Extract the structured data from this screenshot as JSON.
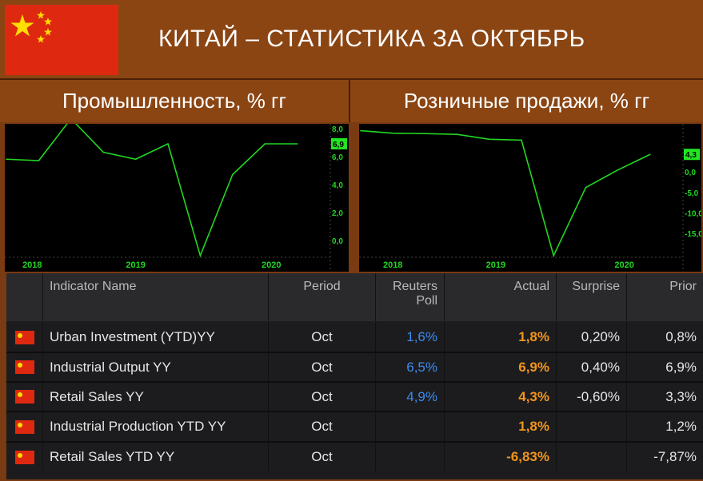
{
  "header": {
    "title": "КИТАЙ – СТАТИСТИКА ЗА ОКТЯБРЬ"
  },
  "colors": {
    "flag_red": "#de2910",
    "flag_yellow": "#ffde00",
    "line_green": "#22d622",
    "poll_blue": "#3d8bef",
    "actual_orange": "#f0951d",
    "bg_brown": "#8b4513"
  },
  "charts": {
    "left_title": "Промышленность, % гг",
    "right_title": "Розничные продажи, % гг"
  },
  "chart_data": [
    {
      "type": "line",
      "title": "Промышленность, % гг",
      "ylim": [
        -1.1,
        8.1
      ],
      "y_ticks": [
        "8,0",
        "6,0",
        "4,0",
        "2,0",
        "0,0"
      ],
      "y_tick_values": [
        8,
        6,
        4,
        2,
        0
      ],
      "x_ticks": [
        "2018",
        "2019",
        "2020"
      ],
      "x_tick_values": [
        2,
        10,
        20.5
      ],
      "last_value_label": "6,9",
      "series": [
        {
          "x": [
            0,
            2.5,
            5,
            7.5,
            10,
            12.5,
            15,
            17.5,
            20,
            22.5
          ],
          "values": [
            5.8,
            5.7,
            8.7,
            6.3,
            5.8,
            6.9,
            -1.1,
            4.7,
            6.9,
            6.9
          ]
        }
      ]
    },
    {
      "type": "line",
      "title": "Розничные продажи, % гг",
      "ylim": [
        -20.5,
        11.0
      ],
      "y_ticks": [
        "0,0",
        "-5,0",
        "-10,0",
        "-15,0"
      ],
      "y_tick_values": [
        0,
        -5,
        -10,
        -15
      ],
      "x_ticks": [
        "2018",
        "2019",
        "2020"
      ],
      "x_tick_values": [
        2.5,
        10.5,
        20.5
      ],
      "last_value_label": "4,3",
      "series": [
        {
          "x": [
            0,
            2.5,
            5,
            7.5,
            10,
            12.5,
            15,
            17.5,
            20,
            22.5
          ],
          "values": [
            10.1,
            9.5,
            9.4,
            9.2,
            8.0,
            7.8,
            -20.5,
            -3.8,
            0.5,
            4.3
          ]
        }
      ]
    }
  ],
  "table": {
    "headers": {
      "name": "Indicator Name",
      "period": "Period",
      "poll": "Reuters Poll",
      "actual": "Actual",
      "surprise": "Surprise",
      "prior": "Prior"
    },
    "rows": [
      {
        "name": "Urban Investment (YTD)YY",
        "period": "Oct",
        "poll": "1,6%",
        "actual": "1,8%",
        "surprise": "0,20%",
        "prior": "0,8%"
      },
      {
        "name": "Industrial Output YY",
        "period": "Oct",
        "poll": "6,5%",
        "actual": "6,9%",
        "surprise": "0,40%",
        "prior": "6,9%"
      },
      {
        "name": "Retail Sales YY",
        "period": "Oct",
        "poll": "4,9%",
        "actual": "4,3%",
        "surprise": "-0,60%",
        "prior": "3,3%"
      },
      {
        "name": "Industrial Production YTD YY",
        "period": "Oct",
        "poll": "",
        "actual": "1,8%",
        "surprise": "",
        "prior": "1,2%"
      },
      {
        "name": "Retail Sales YTD YY",
        "period": "Oct",
        "poll": "",
        "actual": "-6,83%",
        "surprise": "",
        "prior": "-7,87%"
      }
    ]
  }
}
